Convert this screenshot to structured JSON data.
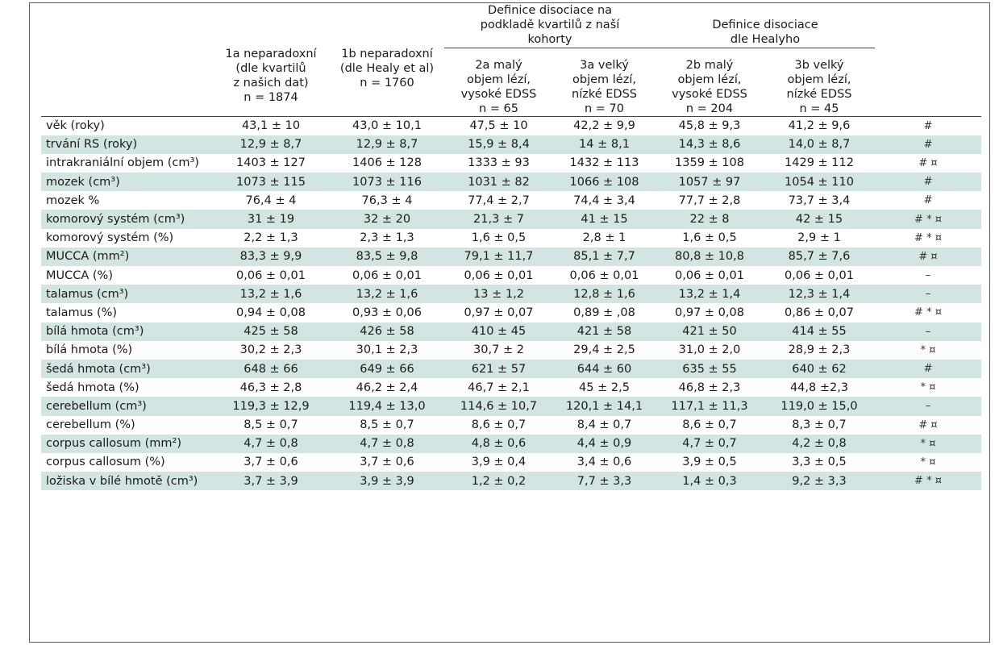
{
  "header": {
    "group_a": "Definice disociace na podkladě kvartilů z naší kohorty",
    "group_b": "Definice disociace dle Healyho",
    "col_1a": [
      "1a neparadoxní",
      "(dle kvartilů",
      "z našich dat)",
      "n = 1874"
    ],
    "col_1b": [
      "1b neparadoxní",
      "(dle Healy et al)",
      "n = 1760"
    ],
    "col_2a": [
      "2a malý",
      "objem lézí,",
      "vysoké EDSS",
      "n = 65"
    ],
    "col_3a": [
      "3a velký",
      "objem lézí,",
      "nízké EDSS",
      "n = 70"
    ],
    "col_2b": [
      "2b malý",
      "objem lézí,",
      "vysoké EDSS",
      "n = 204"
    ],
    "col_3b": [
      "3b velký",
      "objem lézí,",
      "nízké EDSS",
      "n = 45"
    ]
  },
  "rows": [
    {
      "label": "věk (roky)",
      "v": [
        "43,1 ± 10",
        "43,0 ± 10,1",
        "47,5 ± 10",
        "42,2 ± 9,9",
        "45,8 ± 9,3",
        "41,2 ± 9,6"
      ],
      "sig": "#"
    },
    {
      "label": "trvání RS (roky)",
      "v": [
        "12,9 ± 8,7",
        "12,9 ± 8,7",
        "15,9 ± 8,4",
        "14 ± 8,1",
        "14,3 ± 8,6",
        "14,0 ± 8,7"
      ],
      "sig": "#"
    },
    {
      "label": "intrakraniální objem (cm³)",
      "v": [
        "1403 ± 127",
        "1406 ± 128",
        "1333 ± 93",
        "1432 ± 113",
        "1359 ± 108",
        "1429 ± 112"
      ],
      "sig": "# ¤"
    },
    {
      "label": "mozek (cm³)",
      "v": [
        "1073 ± 115",
        "1073 ± 116",
        "1031 ± 82",
        "1066 ± 108",
        "1057 ± 97",
        "1054 ± 110"
      ],
      "sig": "#"
    },
    {
      "label": "mozek %",
      "v": [
        "76,4 ± 4",
        "76,3 ± 4",
        "77,4 ± 2,7",
        "74,4 ± 3,4",
        "77,7 ± 2,8",
        "73,7 ± 3,4"
      ],
      "sig": "#"
    },
    {
      "label": "komorový systém (cm³)",
      "v": [
        "31 ± 19",
        "32 ± 20",
        "21,3 ± 7",
        "41 ± 15",
        "22 ± 8",
        "42 ± 15"
      ],
      "sig": "# * ¤"
    },
    {
      "label": "komorový systém (%)",
      "v": [
        "2,2 ± 1,3",
        "2,3 ± 1,3",
        "1,6 ± 0,5",
        "2,8 ± 1",
        "1,6 ± 0,5",
        "2,9 ± 1"
      ],
      "sig": "# * ¤"
    },
    {
      "label": "MUCCA (mm²)",
      "v": [
        "83,3 ± 9,9",
        "83,5 ± 9,8",
        "79,1 ± 11,7",
        "85,1 ± 7,7",
        "80,8 ± 10,8",
        "85,7 ± 7,6"
      ],
      "sig": "# ¤"
    },
    {
      "label": "MUCCA (%)",
      "v": [
        "0,06 ± 0,01",
        "0,06 ± 0,01",
        "0,06 ± 0,01",
        "0,06 ± 0,01",
        "0,06 ± 0,01",
        "0,06 ± 0,01"
      ],
      "sig": "–"
    },
    {
      "label": "talamus (cm³)",
      "v": [
        "13,2 ± 1,6",
        "13,2 ± 1,6",
        "13 ± 1,2",
        "12,8 ± 1,6",
        "13,2 ± 1,4",
        "12,3 ± 1,4"
      ],
      "sig": "–"
    },
    {
      "label": "talamus (%)",
      "v": [
        "0,94 ± 0,08",
        "0,93 ± 0,06",
        "0,97 ± 0,07",
        "0,89 ± ,08",
        "0,97 ± 0,08",
        "0,86 ± 0,07"
      ],
      "sig": "# * ¤"
    },
    {
      "label": "bílá hmota (cm³)",
      "v": [
        "425 ± 58",
        "426 ± 58",
        "410 ± 45",
        "421 ± 58",
        "421 ± 50",
        "414 ± 55"
      ],
      "sig": "–"
    },
    {
      "label": "bílá hmota (%)",
      "v": [
        "30,2 ± 2,3",
        "30,1 ± 2,3",
        "30,7 ± 2",
        "29,4 ± 2,5",
        "31,0 ± 2,0",
        "28,9 ± 2,3"
      ],
      "sig": "* ¤"
    },
    {
      "label": "šedá hmota (cm³)",
      "v": [
        "648 ± 66",
        "649 ± 66",
        "621 ± 57",
        "644 ± 60",
        "635 ± 55",
        "640 ± 62"
      ],
      "sig": "#"
    },
    {
      "label": "šedá hmota (%)",
      "v": [
        "46,3 ± 2,8",
        "46,2 ± 2,4",
        "46,7 ± 2,1",
        "45 ± 2,5",
        "46,8 ± 2,3",
        "44,8 ±2,3"
      ],
      "sig": "* ¤"
    },
    {
      "label": "cerebellum (cm³)",
      "v": [
        "119,3 ± 12,9",
        "119,4 ± 13,0",
        "114,6 ± 10,7",
        "120,1 ± 14,1",
        "117,1 ± 11,3",
        "119,0 ± 15,0"
      ],
      "sig": "–"
    },
    {
      "label": "cerebellum (%)",
      "v": [
        "8,5 ± 0,7",
        "8,5 ± 0,7",
        "8,6 ± 0,7",
        "8,4 ± 0,7",
        "8,6 ± 0,7",
        "8,3 ± 0,7"
      ],
      "sig": "# ¤"
    },
    {
      "label": "corpus callosum (mm²)",
      "v": [
        "4,7 ± 0,8",
        "4,7 ± 0,8",
        "4,8 ± 0,6",
        "4,4 ± 0,9",
        "4,7 ± 0,7",
        "4,2 ± 0,8"
      ],
      "sig": "* ¤"
    },
    {
      "label": "corpus callosum (%)",
      "v": [
        "3,7 ± 0,6",
        "3,7 ± 0,6",
        "3,9 ± 0,4",
        "3,4 ± 0,6",
        "3,9 ± 0,5",
        "3,3 ± 0,5"
      ],
      "sig": "* ¤"
    },
    {
      "label": "ložiska v bílé hmotě (cm³)",
      "v": [
        "3,7 ± 3,9",
        "3,9 ± 3,9",
        "1,2 ± 0,2",
        "7,7 ± 3,3",
        "1,4 ± 0,3",
        "9,2 ± 3,3"
      ],
      "sig": "# * ¤"
    }
  ],
  "colors": {
    "row_shade": "#d3e5e2",
    "border": "#444444"
  }
}
